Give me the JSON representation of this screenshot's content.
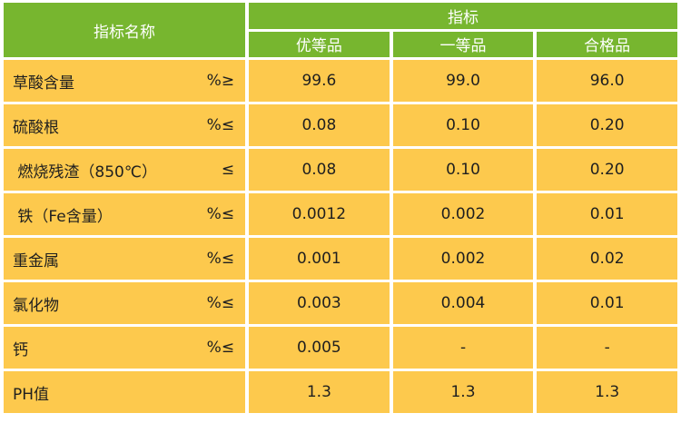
{
  "header": {
    "name_label": "指标名称",
    "group_label": "指标",
    "grades": [
      "优等品",
      "一等品",
      "合格品"
    ]
  },
  "rows": [
    {
      "name": "草酸含量",
      "unit": "%≥",
      "values": [
        "99.6",
        "99.0",
        "96.0"
      ]
    },
    {
      "name": "硫酸根",
      "unit": "%≤",
      "values": [
        "0.08",
        "0.10",
        "0.20"
      ]
    },
    {
      "name": " 燃烧残渣（850℃）",
      "unit": "≤",
      "values": [
        "0.08",
        "0.10",
        "0.20"
      ]
    },
    {
      "name": " 铁（Fe含量）",
      "unit": "%≤",
      "values": [
        "0.0012",
        "0.002",
        "0.01"
      ]
    },
    {
      "name": "重金属",
      "unit": "%≤",
      "values": [
        "0.001",
        "0.002",
        "0.02"
      ]
    },
    {
      "name": "氯化物",
      "unit": "%≤",
      "values": [
        "0.003",
        "0.004",
        "0.01"
      ]
    },
    {
      "name": "钙",
      "unit": "%≤",
      "values": [
        "0.005",
        "-",
        "-"
      ]
    },
    {
      "name": "PH值",
      "unit": "",
      "values": [
        "1.3",
        "1.3",
        "1.3"
      ]
    }
  ],
  "colors": {
    "header_bg": "#77b62f",
    "cell_bg": "#fdc94d",
    "header_text": "#ffffff"
  }
}
